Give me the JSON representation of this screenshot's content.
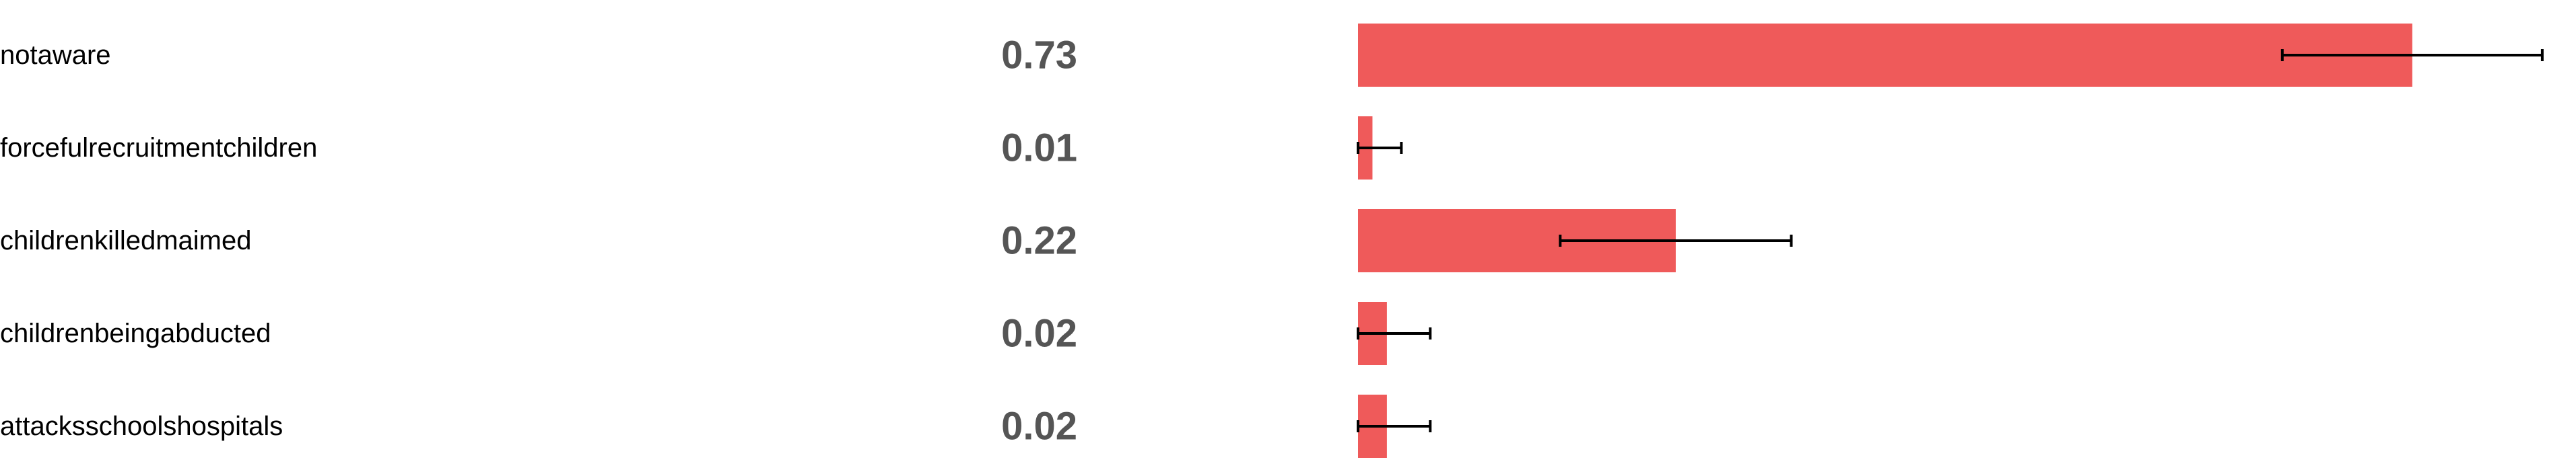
{
  "colors": {
    "bar": "#ef5a5a",
    "error_bar": "#000000",
    "label": "#000000",
    "value": "#555555"
  },
  "chart_data": {
    "type": "bar",
    "orientation": "horizontal",
    "categories": [
      "notaware",
      "forcefulrecruitmentchildren",
      "childrenkilledmaimed",
      "childrenbeingabducted",
      "attacksschoolshospitals"
    ],
    "values": [
      0.73,
      0.01,
      0.22,
      0.02,
      0.02
    ],
    "value_labels": [
      "0.73",
      "0.01",
      "0.22",
      "0.02",
      "0.02"
    ],
    "error_low": [
      0.64,
      0.0,
      0.14,
      0.0,
      0.0
    ],
    "error_high": [
      0.82,
      0.03,
      0.3,
      0.05,
      0.05
    ],
    "xlim": [
      0,
      1
    ],
    "grid": false,
    "legend": "none"
  }
}
